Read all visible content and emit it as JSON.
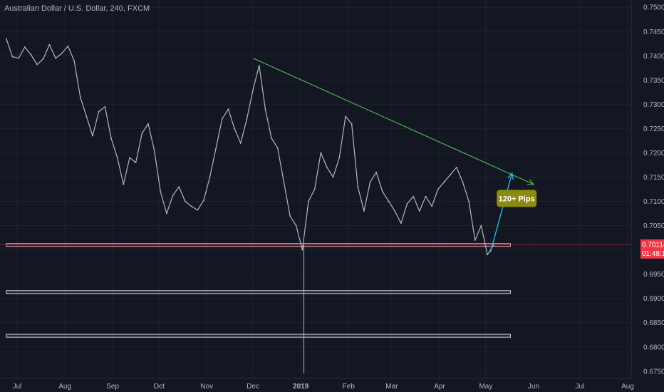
{
  "chart_data": {
    "type": "line",
    "title": "Australian Dollar / U.S. Dollar, 240, FXCM",
    "ylim": [
      0.6735,
      0.7515
    ],
    "x_ticks": [
      "Jul",
      "Aug",
      "Sep",
      "Oct",
      "Nov",
      "Dec",
      "2019",
      "Feb",
      "Mar",
      "Apr",
      "May",
      "Jun",
      "Jul",
      "Aug"
    ],
    "x_ticks_bold": [
      "2019"
    ],
    "y_ticks": [
      0.675,
      0.68,
      0.685,
      0.69,
      0.695,
      0.7,
      0.705,
      0.71,
      0.715,
      0.72,
      0.725,
      0.73,
      0.735,
      0.74,
      0.745,
      0.75
    ],
    "y_tick_labels": [
      "0.67500",
      "0.68000",
      "0.68500",
      "0.69000",
      "0.69500",
      "0.70000",
      "0.70500",
      "0.71000",
      "0.71500",
      "0.72000",
      "0.72500",
      "0.73000",
      "0.73500",
      "0.74000",
      "0.74500",
      "0.75000"
    ],
    "series": [
      {
        "color": "#b4b7c0",
        "x": [
          "Jun 24",
          "Jun 28",
          "Jul 2",
          "Jul 6",
          "Jul 10",
          "Jul 14",
          "Jul 18",
          "Jul 22",
          "Jul 26",
          "Jul 30",
          "Aug 3",
          "Aug 7",
          "Aug 11",
          "Aug 15",
          "Aug 19",
          "Aug 23",
          "Aug 27",
          "Aug 31",
          "Sep 4",
          "Sep 8",
          "Sep 12",
          "Sep 16",
          "Sep 20",
          "Sep 24",
          "Sep 28",
          "Oct 2",
          "Oct 6",
          "Oct 10",
          "Oct 14",
          "Oct 18",
          "Oct 22",
          "Oct 26",
          "Oct 30",
          "Nov 3",
          "Nov 7",
          "Nov 11",
          "Nov 15",
          "Nov 19",
          "Nov 23",
          "Nov 27",
          "Dec 1",
          "Dec 5",
          "Dec 9",
          "Dec 13",
          "Dec 17",
          "Dec 21",
          "Dec 25",
          "Dec 29",
          "Jan 2",
          "Jan 6",
          "Jan 10",
          "Jan 14",
          "Jan 18",
          "Jan 22",
          "Jan 26",
          "Jan 30",
          "Feb 3",
          "Feb 7",
          "Feb 11",
          "Feb 15",
          "Feb 19",
          "Feb 23",
          "Feb 27",
          "Mar 3",
          "Mar 7",
          "Mar 11",
          "Mar 15",
          "Mar 19",
          "Mar 23",
          "Mar 27",
          "Mar 31",
          "Apr 4",
          "Apr 8",
          "Apr 12",
          "Apr 16",
          "Apr 20",
          "Apr 24",
          "Apr 28",
          "May 2",
          "May 6"
        ],
        "y": [
          0.7435,
          0.7398,
          0.7395,
          0.7418,
          0.7402,
          0.7382,
          0.7394,
          0.7423,
          0.7395,
          0.7405,
          0.742,
          0.739,
          0.7315,
          0.7275,
          0.7235,
          0.7285,
          0.7295,
          0.723,
          0.719,
          0.7135,
          0.719,
          0.718,
          0.724,
          0.726,
          0.7205,
          0.712,
          0.7075,
          0.7112,
          0.713,
          0.71,
          0.709,
          0.7082,
          0.7102,
          0.715,
          0.721,
          0.727,
          0.729,
          0.725,
          0.722,
          0.727,
          0.733,
          0.738,
          0.729,
          0.723,
          0.721,
          0.714,
          0.707,
          0.705,
          0.7,
          0.71,
          0.7125,
          0.72,
          0.717,
          0.715,
          0.719,
          0.7275,
          0.726,
          0.713,
          0.708,
          0.714,
          0.716,
          0.712,
          0.71,
          0.708,
          0.7055,
          0.7095,
          0.711,
          0.708,
          0.711,
          0.709,
          0.7125,
          0.714,
          0.7155,
          0.717,
          0.714,
          0.71,
          0.702,
          0.705,
          0.699,
          0.701
        ]
      }
    ],
    "last_price": {
      "value": 0.70114,
      "label": "0.70114",
      "countdown": "01:48:17",
      "color": "#f23645"
    },
    "annotations": {
      "trendline": {
        "color": "#4caf50",
        "from": [
          "Dec 1",
          0.7395
        ],
        "to": [
          "Jun 1",
          0.7135
        ]
      },
      "arrow": {
        "color": "#2bb5e5",
        "from": [
          "May 4",
          0.6995
        ],
        "to": [
          "May 18",
          0.7158
        ]
      },
      "label": {
        "text": "120+ Pips",
        "bg": "#8b8a12",
        "at": [
          "May 21",
          0.7106
        ]
      },
      "zones": [
        {
          "from": "Jun 24",
          "to": "May 17",
          "y_low": 0.7008,
          "y_high": 0.7013,
          "color": "#e8a0ae"
        },
        {
          "from": "Jun 24",
          "to": "May 17",
          "y_low": 0.691,
          "y_high": 0.6916,
          "color": "#cfd2d9"
        },
        {
          "from": "Jun 24",
          "to": "May 17",
          "y_low": 0.682,
          "y_high": 0.6826,
          "color": "#cfd2d9"
        }
      ],
      "flash_crash_low": {
        "x": "Jan 3",
        "y": 0.6745
      }
    },
    "grid": true
  }
}
